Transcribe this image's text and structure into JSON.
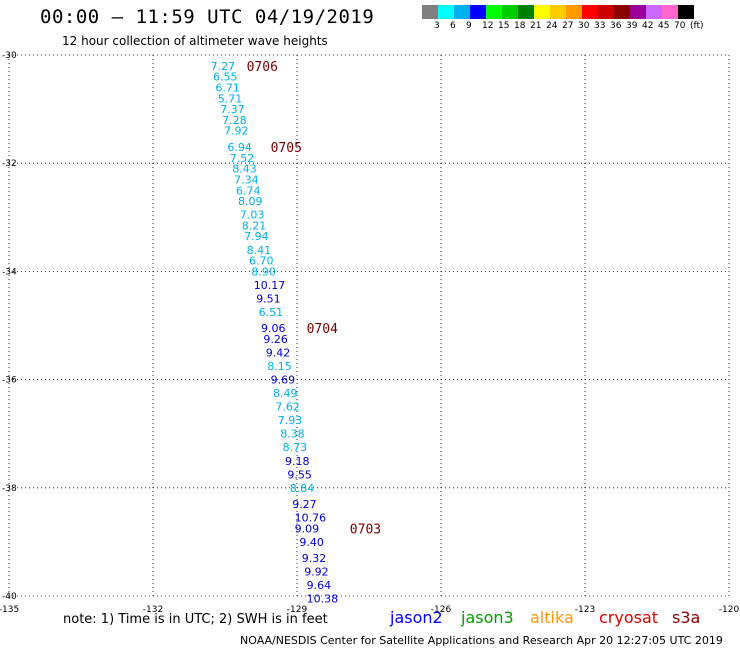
{
  "header": {
    "title": "00:00 – 11:59 UTC 04/19/2019",
    "subtitle": "12 hour collection of altimeter wave heights"
  },
  "color_scale": {
    "labels": [
      "3",
      "6",
      "9",
      "12",
      "15",
      "18",
      "21",
      "24",
      "27",
      "30",
      "33",
      "36",
      "39",
      "42",
      "45",
      "70"
    ],
    "unit": "(ft)",
    "colors": [
      "#808080",
      "#00ffff",
      "#00b0f0",
      "#0000ff",
      "#00ff00",
      "#00cc00",
      "#008000",
      "#ffff00",
      "#ffcc00",
      "#ff9900",
      "#ff0000",
      "#cc0000",
      "#8b0000",
      "#990099",
      "#cc66ff",
      "#ff66cc",
      "#000000"
    ]
  },
  "axes": {
    "lat_ticks": [
      "-30",
      "-32",
      "-34",
      "-36",
      "-38",
      "-40"
    ],
    "lon_ticks": [
      "-135",
      "-132",
      "-129",
      "-126",
      "-123",
      "-120"
    ]
  },
  "observations": [
    {
      "v": "7.27",
      "lat": -30.2,
      "lon": -130.8,
      "c": "#00b0f0"
    },
    {
      "v": "6.55",
      "lat": -30.4,
      "lon": -130.75,
      "c": "#00b0f0"
    },
    {
      "v": "6.71",
      "lat": -30.6,
      "lon": -130.7,
      "c": "#00b0f0"
    },
    {
      "v": "5.71",
      "lat": -30.8,
      "lon": -130.65,
      "c": "#00b0f0"
    },
    {
      "v": "7.37",
      "lat": -31.0,
      "lon": -130.6,
      "c": "#00b0f0"
    },
    {
      "v": "7.28",
      "lat": -31.2,
      "lon": -130.56,
      "c": "#00b0f0"
    },
    {
      "v": "7.92",
      "lat": -31.4,
      "lon": -130.52,
      "c": "#00b0f0"
    },
    {
      "v": "6.94",
      "lat": -31.7,
      "lon": -130.45,
      "c": "#00b0f0"
    },
    {
      "v": "7.52",
      "lat": -31.9,
      "lon": -130.4,
      "c": "#00b0f0"
    },
    {
      "v": "8.43",
      "lat": -32.1,
      "lon": -130.35,
      "c": "#00b0f0"
    },
    {
      "v": "7.34",
      "lat": -32.3,
      "lon": -130.31,
      "c": "#00b0f0"
    },
    {
      "v": "6.74",
      "lat": -32.5,
      "lon": -130.27,
      "c": "#00b0f0"
    },
    {
      "v": "8.09",
      "lat": -32.7,
      "lon": -130.23,
      "c": "#00b0f0"
    },
    {
      "v": "7.03",
      "lat": -32.95,
      "lon": -130.19,
      "c": "#00b0f0"
    },
    {
      "v": "8.21",
      "lat": -33.15,
      "lon": -130.15,
      "c": "#00b0f0"
    },
    {
      "v": "7.94",
      "lat": -33.35,
      "lon": -130.1,
      "c": "#00b0f0"
    },
    {
      "v": "8.41",
      "lat": -33.6,
      "lon": -130.05,
      "c": "#00b0f0"
    },
    {
      "v": "6.70",
      "lat": -33.8,
      "lon": -130.0,
      "c": "#00b0f0"
    },
    {
      "v": "8.90",
      "lat": -34.0,
      "lon": -129.95,
      "c": "#00b0f0"
    },
    {
      "v": "10.17",
      "lat": -34.25,
      "lon": -129.9,
      "c": "#0000cc"
    },
    {
      "v": "9.51",
      "lat": -34.5,
      "lon": -129.85,
      "c": "#0000cc"
    },
    {
      "v": "6.51",
      "lat": -34.75,
      "lon": -129.8,
      "c": "#00b0f0"
    },
    {
      "v": "9.06",
      "lat": -35.05,
      "lon": -129.75,
      "c": "#0000cc"
    },
    {
      "v": "9.26",
      "lat": -35.25,
      "lon": -129.7,
      "c": "#0000cc"
    },
    {
      "v": "9.42",
      "lat": -35.5,
      "lon": -129.65,
      "c": "#0000cc"
    },
    {
      "v": "8.15",
      "lat": -35.75,
      "lon": -129.62,
      "c": "#00b0f0"
    },
    {
      "v": "9.69",
      "lat": -36.0,
      "lon": -129.55,
      "c": "#0000cc"
    },
    {
      "v": "8.49",
      "lat": -36.25,
      "lon": -129.5,
      "c": "#00b0f0"
    },
    {
      "v": "7.62",
      "lat": -36.5,
      "lon": -129.45,
      "c": "#00b0f0"
    },
    {
      "v": "7.93",
      "lat": -36.75,
      "lon": -129.4,
      "c": "#00b0f0"
    },
    {
      "v": "8.38",
      "lat": -37.0,
      "lon": -129.35,
      "c": "#00b0f0"
    },
    {
      "v": "8.73",
      "lat": -37.25,
      "lon": -129.3,
      "c": "#00b0f0"
    },
    {
      "v": "9.18",
      "lat": -37.5,
      "lon": -129.25,
      "c": "#0000cc"
    },
    {
      "v": "9.55",
      "lat": -37.75,
      "lon": -129.2,
      "c": "#0000cc"
    },
    {
      "v": "8.84",
      "lat": -38.0,
      "lon": -129.15,
      "c": "#00b0f0"
    },
    {
      "v": "9.27",
      "lat": -38.3,
      "lon": -129.1,
      "c": "#0000cc"
    },
    {
      "v": "10.76",
      "lat": -38.55,
      "lon": -129.05,
      "c": "#0000cc"
    },
    {
      "v": "9.09",
      "lat": -38.75,
      "lon": -129.05,
      "c": "#0000cc"
    },
    {
      "v": "9.40",
      "lat": -39.0,
      "lon": -128.95,
      "c": "#0000cc"
    },
    {
      "v": "9.32",
      "lat": -39.3,
      "lon": -128.9,
      "c": "#0000cc"
    },
    {
      "v": "9.92",
      "lat": -39.55,
      "lon": -128.85,
      "c": "#0000cc"
    },
    {
      "v": "9.64",
      "lat": -39.8,
      "lon": -128.8,
      "c": "#0000cc"
    },
    {
      "v": "10.38",
      "lat": -40.05,
      "lon": -128.8,
      "c": "#0000cc"
    }
  ],
  "time_labels": [
    {
      "t": "0706",
      "lat": -30.2,
      "lon": -130.05
    },
    {
      "t": "0705",
      "lat": -31.7,
      "lon": -129.55
    },
    {
      "t": "0704",
      "lat": -35.05,
      "lon": -128.8
    },
    {
      "t": "0703",
      "lat": -38.75,
      "lon": -127.9
    }
  ],
  "footer": {
    "note": "note: 1) Time is in UTC; 2) SWH is in feet",
    "satellites": [
      {
        "name": "jason2",
        "color": "#0000ff"
      },
      {
        "name": "jason3",
        "color": "#00a000"
      },
      {
        "name": "altika",
        "color": "#ff9900"
      },
      {
        "name": "cryosat",
        "color": "#e00000"
      },
      {
        "name": "s3a",
        "color": "#8b0000"
      }
    ],
    "credit": "NOAA/NESDIS Center for Satellite Applications and Research   Apr 20 12:27:05 UTC 2019"
  }
}
